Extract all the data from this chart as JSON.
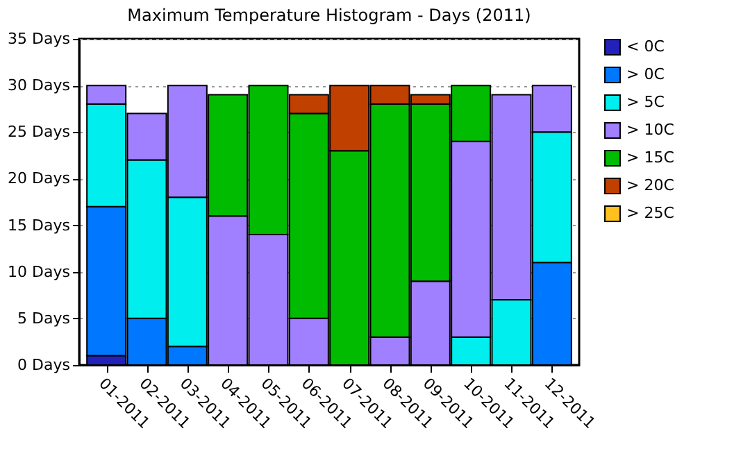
{
  "chart_data": {
    "type": "bar",
    "title": "Maximum Temperature Histogram - Days (2011)",
    "stacked": true,
    "categories": [
      "01-2011",
      "02-2011",
      "03-2011",
      "04-2011",
      "05-2011",
      "06-2011",
      "07-2011",
      "08-2011",
      "09-2011",
      "10-2011",
      "11-2011",
      "12-2011"
    ],
    "series": [
      {
        "name": "< 0C",
        "color": "#2222bb",
        "values": [
          1,
          null,
          null,
          null,
          null,
          null,
          null,
          null,
          null,
          null,
          null,
          null
        ]
      },
      {
        "name": "> 0C",
        "color": "#0077ff",
        "values": [
          16,
          5,
          2,
          null,
          null,
          null,
          null,
          null,
          null,
          null,
          null,
          11
        ]
      },
      {
        "name": "> 5C",
        "color": "#00eeee",
        "values": [
          11,
          17,
          16,
          null,
          null,
          null,
          null,
          null,
          null,
          3,
          7,
          14
        ]
      },
      {
        "name": "> 10C",
        "color": "#a080ff",
        "values": [
          2,
          5,
          12,
          16,
          14,
          5,
          null,
          3,
          9,
          21,
          22,
          5
        ]
      },
      {
        "name": "> 15C",
        "color": "#00bb00",
        "values": [
          null,
          null,
          null,
          13,
          16,
          22,
          23,
          25,
          19,
          6,
          null,
          null
        ]
      },
      {
        "name": "> 20C",
        "color": "#c04000",
        "values": [
          null,
          null,
          null,
          null,
          null,
          2,
          7,
          2,
          1,
          null,
          null,
          null
        ]
      },
      {
        "name": "> 25C",
        "color": "#ffc020",
        "values": [
          null,
          null,
          null,
          null,
          null,
          null,
          null,
          null,
          null,
          null,
          null,
          null
        ]
      }
    ],
    "ylim": [
      0,
      35
    ],
    "yticks": [
      {
        "value": 0,
        "label": "0 Days"
      },
      {
        "value": 5,
        "label": "5 Days"
      },
      {
        "value": 10,
        "label": "10 Days"
      },
      {
        "value": 15,
        "label": "15 Days"
      },
      {
        "value": 20,
        "label": "20 Days"
      },
      {
        "value": 25,
        "label": "25 Days"
      },
      {
        "value": 30,
        "label": "30 Days"
      },
      {
        "value": 35,
        "label": "35 Days"
      }
    ],
    "grid": "y",
    "legend": "right"
  }
}
